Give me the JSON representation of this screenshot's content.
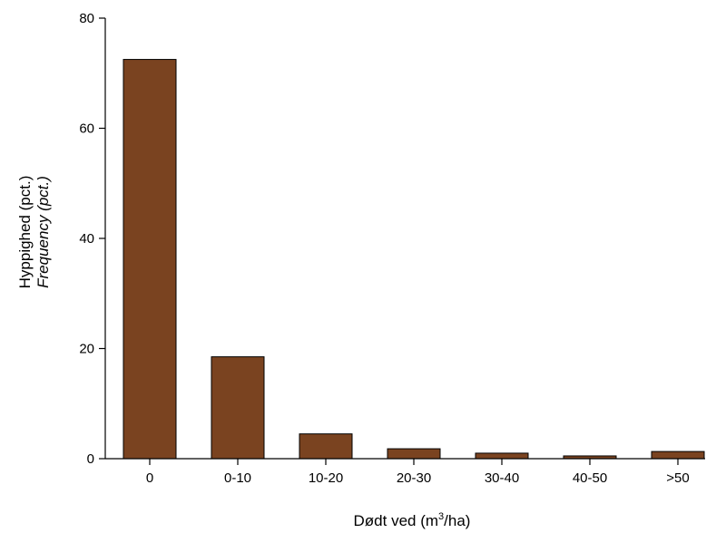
{
  "chart_data": {
    "type": "bar",
    "categories": [
      "0",
      "0-10",
      "10-20",
      "20-30",
      "30-40",
      "40-50",
      ">50"
    ],
    "values": [
      72.5,
      18.5,
      4.5,
      1.8,
      1.0,
      0.5,
      1.3
    ],
    "ylabel": "Hyppighed (pct.)",
    "ylabel_secondary": "Frequency (pct.)",
    "xlabel_prefix": "Dødt ved (m",
    "xlabel_sup": "3",
    "xlabel_suffix": "/ha)",
    "ylim": [
      0,
      80
    ],
    "yticks": [
      "0",
      "20",
      "40",
      "60",
      "80"
    ],
    "grid": false,
    "legend": "none",
    "bar_color": "#7a4320",
    "bar_edge_color": "#000000"
  }
}
